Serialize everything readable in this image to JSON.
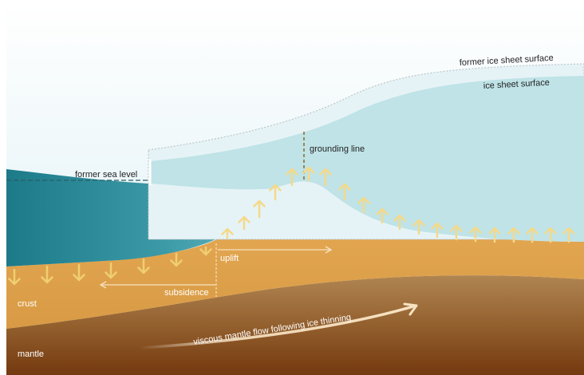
{
  "labels": {
    "former_ice_sheet_surface": "former ice sheet surface",
    "ice_sheet_surface": "ice sheet surface",
    "grounding_line": "grounding line",
    "former_sea_level": "former sea level",
    "uplift": "uplift",
    "subsidence": "subsidence",
    "crust": "crust",
    "mantle": "mantle",
    "mantle_flow": "viscous mantle flow following ice thinning"
  },
  "colors": {
    "sky_top": "#ffffff",
    "sky_bottom": "#d8eef4",
    "ice": "#bfe3e7",
    "former_ice": "#e3f1f4",
    "ocean_light": "#4fa7b3",
    "ocean_dark": "#1e7d8c",
    "crust": "#e5a853",
    "crust_dark": "#c98a3c",
    "mantle_top": "#a77a4c",
    "mantle_bottom": "#7a4016",
    "uplift_arrow": "#f4d98a",
    "subsidence_arrow": "#efcf73",
    "annotation_arrow": "#f7e2c2"
  }
}
